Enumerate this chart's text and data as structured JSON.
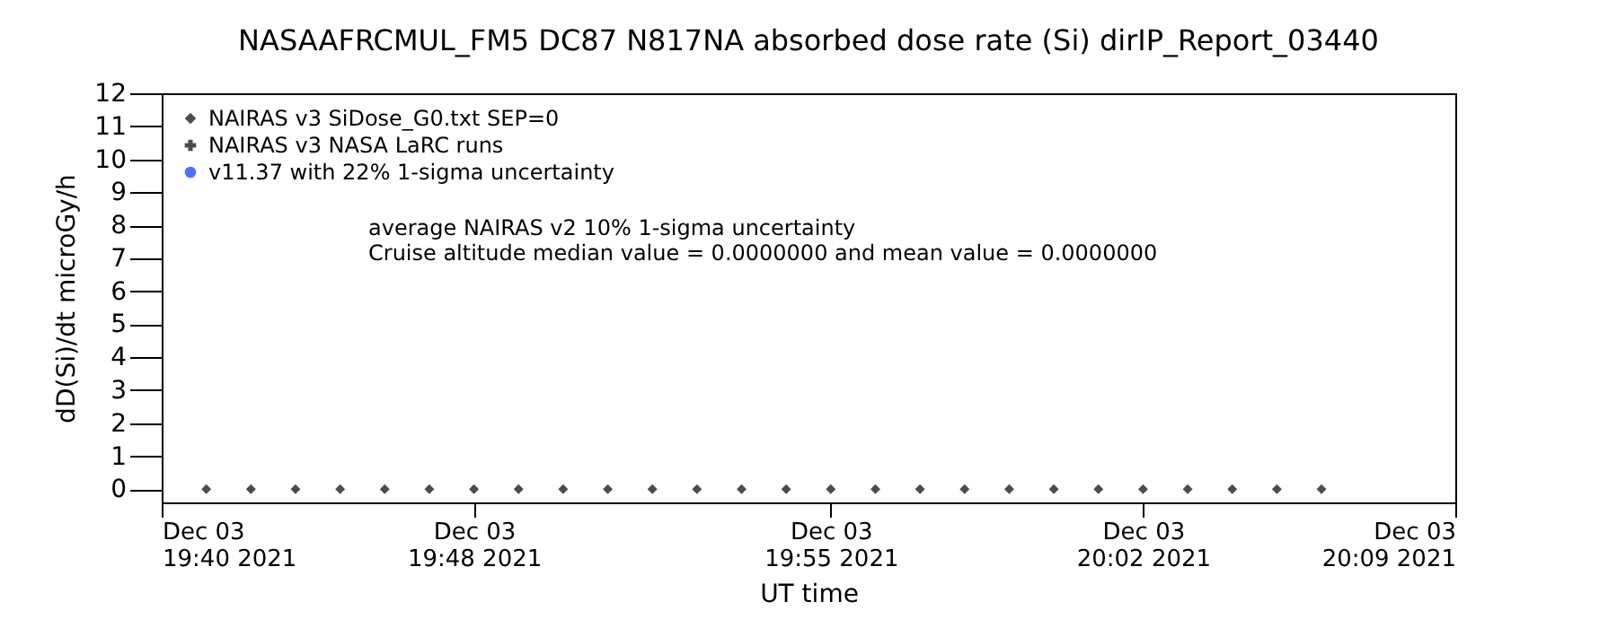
{
  "chart_data": {
    "type": "scatter",
    "title": "NASAAFRCMUL_FM5 DC87 N817NA absorbed dose rate (Si) dirIP_Report_03440",
    "xlabel": "UT time",
    "ylabel": "dD(Si)/dt microGy/h",
    "x": [
      "2021-12-03T19:41",
      "2021-12-03T19:42",
      "2021-12-03T19:43",
      "2021-12-03T19:44",
      "2021-12-03T19:45",
      "2021-12-03T19:46",
      "2021-12-03T19:47",
      "2021-12-03T19:48",
      "2021-12-03T19:49",
      "2021-12-03T19:50",
      "2021-12-03T19:51",
      "2021-12-03T19:52",
      "2021-12-03T19:53",
      "2021-12-03T19:54",
      "2021-12-03T19:55",
      "2021-12-03T19:56",
      "2021-12-03T19:57",
      "2021-12-03T19:58",
      "2021-12-03T19:59",
      "2021-12-03T20:00",
      "2021-12-03T20:01",
      "2021-12-03T20:02",
      "2021-12-03T20:03",
      "2021-12-03T20:04",
      "2021-12-03T20:05",
      "2021-12-03T20:06"
    ],
    "series": [
      {
        "name": "NAIRAS v3 SiDose_G0.txt SEP=0",
        "color": "#000000",
        "marker": "diamond",
        "values": [
          0,
          0,
          0,
          0,
          0,
          0,
          0,
          0,
          0,
          0,
          0,
          0,
          0,
          0,
          0,
          0,
          0,
          0,
          0,
          0,
          0,
          0,
          0,
          0,
          0,
          0
        ]
      },
      {
        "name": "NAIRAS v3 NASA LaRC runs",
        "color": "#000000",
        "marker": "cross",
        "values": [
          null,
          null,
          null,
          null,
          null,
          null,
          null,
          null,
          null,
          null,
          null,
          null,
          null,
          null,
          null,
          null,
          null,
          null,
          null,
          null,
          null,
          null,
          null,
          null,
          null,
          null
        ]
      },
      {
        "name": "v11.37 with 22% 1-sigma uncertainty",
        "color": "#0033ff",
        "marker": "circle",
        "values": [
          null,
          null,
          null,
          null,
          null,
          null,
          null,
          null,
          null,
          null,
          null,
          null,
          null,
          null,
          null,
          null,
          null,
          null,
          null,
          null,
          null,
          null,
          null,
          null,
          null,
          null
        ]
      }
    ],
    "annotations": [
      "average NAIRAS v2 10% 1-sigma uncertainty",
      "Cruise altitude median value = 0.0000000 and mean value = 0.0000000"
    ],
    "xlim": [
      "2021-12-03T19:40",
      "2021-12-03T20:09"
    ],
    "xticks": [
      {
        "value": "2021-12-03T19:40",
        "label": "Dec 03\n19:40 2021"
      },
      {
        "value": "2021-12-03T19:47",
        "label": "Dec 03\n19:48 2021"
      },
      {
        "value": "2021-12-03T19:55",
        "label": "Dec 03\n19:55 2021"
      },
      {
        "value": "2021-12-03T20:02",
        "label": "Dec 03\n20:02 2021"
      },
      {
        "value": "2021-12-03T20:09",
        "label": "Dec 03\n20:09 2021"
      }
    ],
    "ylim": [
      -0.4,
      12
    ],
    "yticks": [
      0,
      1,
      2,
      3,
      4,
      5,
      6,
      7,
      8,
      9,
      10,
      11,
      12
    ],
    "grid": false,
    "legend": "top left"
  }
}
